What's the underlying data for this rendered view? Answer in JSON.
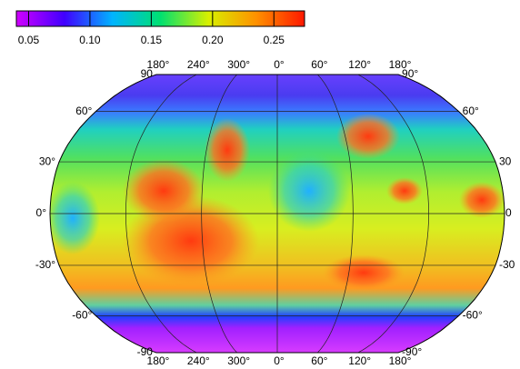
{
  "colorbar": {
    "range": [
      0.04,
      0.275
    ],
    "ticks": [
      0.05,
      {
        "value": 0.1,
        "label": "0.10"
      },
      0.15,
      {
        "value": 0.2,
        "label": "0.20"
      },
      0.25
    ],
    "colors": [
      "#d000ff",
      "#4000ff",
      "#00b4ff",
      "#00e070",
      "#d8f000",
      "#ff9000",
      "#ff1800"
    ]
  },
  "map": {
    "lon_top": [
      "180°",
      "240°",
      "300°",
      "0°",
      "60°",
      "120°",
      "180°"
    ],
    "lon_bottom": [
      "180°",
      "240°",
      "300°",
      "0°",
      "60°",
      "120°",
      "180°"
    ],
    "lat_left": [
      "90",
      "60°",
      "30°",
      "0°",
      "-30°",
      "-60°",
      "-90"
    ],
    "lat_right": [
      "90°",
      "60°",
      "30",
      "0",
      "-30",
      "-60°",
      "-90°"
    ]
  }
}
